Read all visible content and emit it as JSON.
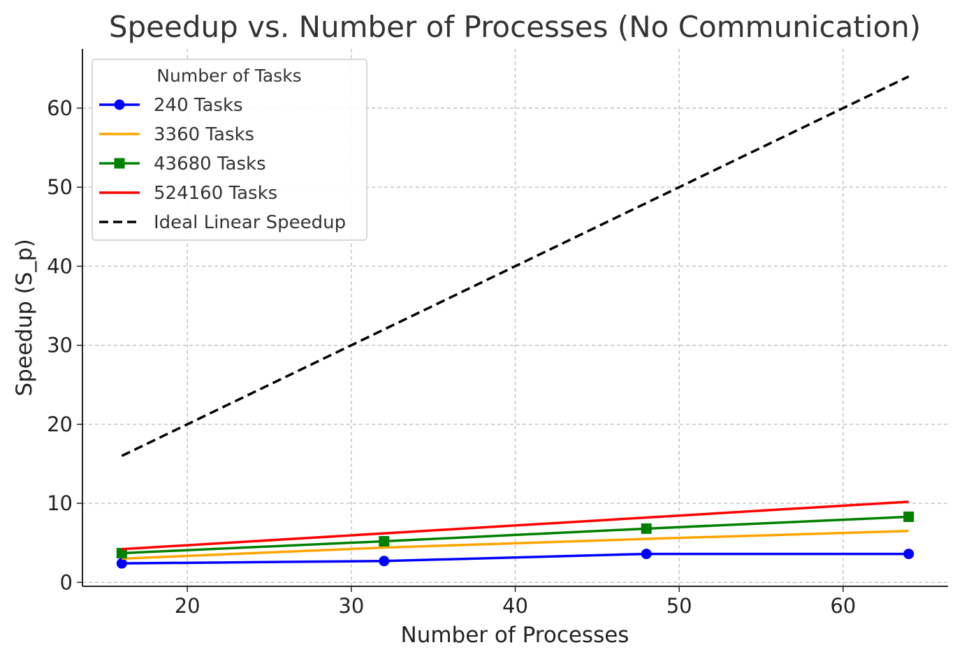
{
  "chart_data": {
    "type": "line",
    "title": "Speedup vs. Number of Processes (No Communication)",
    "xlabel": "Number of Processes",
    "ylabel": "Speedup (S_p)",
    "x": [
      16,
      32,
      48,
      64
    ],
    "xlim": [
      13.6,
      66.4
    ],
    "ylim": [
      -0.5,
      67.5
    ],
    "xticks": [
      20,
      30,
      40,
      50,
      60
    ],
    "yticks": [
      0,
      10,
      20,
      30,
      40,
      50,
      60
    ],
    "grid": true,
    "legend": {
      "title": "Number of Tasks",
      "position": "top-left"
    },
    "series": [
      {
        "name": "240 Tasks",
        "values": [
          2.4,
          2.7,
          3.6,
          3.6
        ],
        "color": "#0000ff",
        "marker": "circle",
        "dash": false
      },
      {
        "name": "3360 Tasks",
        "values": [
          3.0,
          4.4,
          5.5,
          6.5
        ],
        "color": "#ffa500",
        "marker": "none",
        "dash": false
      },
      {
        "name": "43680 Tasks",
        "values": [
          3.7,
          5.2,
          6.8,
          8.3
        ],
        "color": "#008000",
        "marker": "square",
        "dash": false
      },
      {
        "name": "524160 Tasks",
        "values": [
          4.2,
          6.2,
          8.2,
          10.2
        ],
        "color": "#ff0000",
        "marker": "none",
        "dash": false
      },
      {
        "name": "Ideal Linear Speedup",
        "values": [
          16,
          32,
          48,
          64
        ],
        "color": "#000000",
        "marker": "none",
        "dash": true
      }
    ]
  }
}
